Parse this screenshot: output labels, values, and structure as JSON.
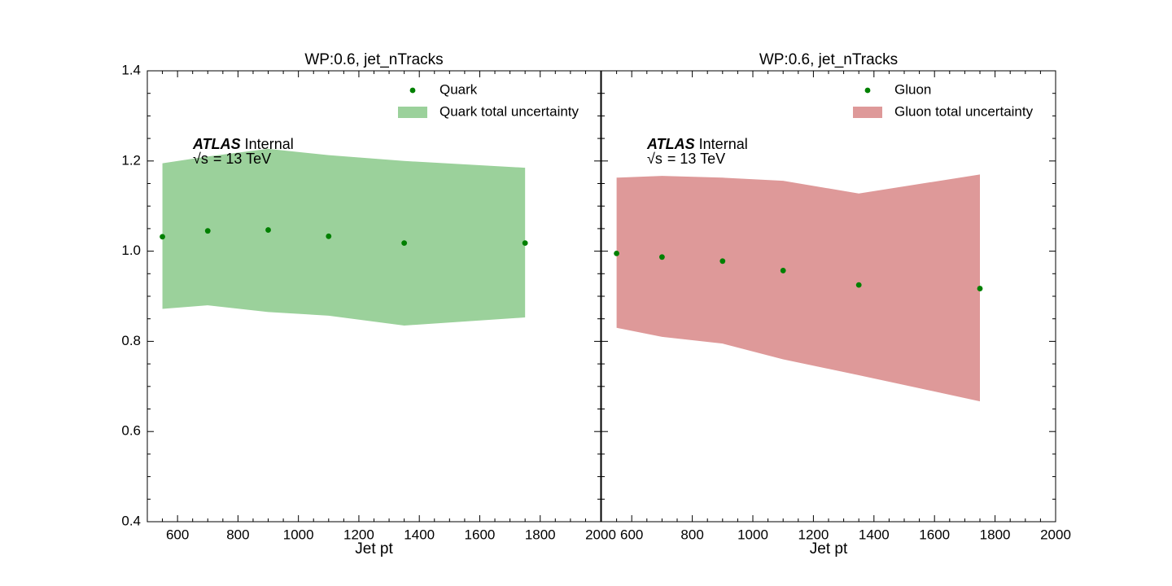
{
  "colors": {
    "marker": "#008000",
    "quark_band": "#9bd19b",
    "gluon_band": "#de9999"
  },
  "atlas": {
    "label": "ATLAS",
    "status": "Internal",
    "energy_prefix": "√s",
    "energy_value": "= 13 TeV"
  },
  "chart_data": [
    {
      "type": "scatter",
      "title": "WP:0.6, jet_nTracks",
      "xlabel": "Jet pt",
      "ylabel": "",
      "xlim": [
        500,
        2000
      ],
      "ylim": [
        0.4,
        1.4
      ],
      "x_ticks": [
        600,
        800,
        1000,
        1200,
        1400,
        1600,
        1800,
        2000
      ],
      "x_tick_labels": [
        "600",
        "800",
        "1000",
        "1200",
        "1400",
        "1600",
        "1800",
        "2000"
      ],
      "y_ticks": [
        0.4,
        0.6,
        0.8,
        1.0,
        1.2,
        1.4
      ],
      "y_tick_labels": [
        "0.4",
        "0.6",
        "0.8",
        "1.0",
        "1.2",
        "1.4"
      ],
      "series": [
        {
          "name": "Quark",
          "kind": "points",
          "x": [
            550,
            700,
            900,
            1100,
            1350,
            1750
          ],
          "y": [
            1.032,
            1.045,
            1.047,
            1.033,
            1.018,
            1.018
          ]
        },
        {
          "name": "Quark total uncertainty",
          "kind": "band",
          "x": [
            550,
            700,
            900,
            1100,
            1350,
            1750
          ],
          "upper": [
            1.195,
            1.21,
            1.227,
            1.213,
            1.2,
            1.185
          ],
          "lower": [
            0.872,
            0.88,
            0.865,
            0.857,
            0.835,
            0.853
          ]
        }
      ],
      "legend": {
        "location": "top-right"
      },
      "band_color_key": "quark_band"
    },
    {
      "type": "scatter",
      "title": "WP:0.6, jet_nTracks",
      "xlabel": "Jet pt",
      "ylabel": "",
      "xlim": [
        500,
        2000
      ],
      "ylim": [
        0.4,
        1.4
      ],
      "x_ticks": [
        600,
        800,
        1000,
        1200,
        1400,
        1600,
        1800,
        2000
      ],
      "x_tick_labels": [
        "600",
        "800",
        "1000",
        "1200",
        "1400",
        "1600",
        "1800",
        "2000"
      ],
      "y_ticks": [],
      "y_tick_labels": [],
      "series": [
        {
          "name": "Gluon",
          "kind": "points",
          "x": [
            550,
            700,
            900,
            1100,
            1350,
            1750
          ],
          "y": [
            0.995,
            0.987,
            0.978,
            0.957,
            0.925,
            0.917
          ]
        },
        {
          "name": "Gluon total uncertainty",
          "kind": "band",
          "x": [
            550,
            700,
            900,
            1100,
            1350,
            1750
          ],
          "upper": [
            1.163,
            1.167,
            1.163,
            1.156,
            1.128,
            1.17
          ],
          "lower": [
            0.83,
            0.81,
            0.795,
            0.76,
            0.725,
            0.667
          ]
        }
      ],
      "legend": {
        "location": "top-right"
      },
      "band_color_key": "gluon_band"
    }
  ]
}
